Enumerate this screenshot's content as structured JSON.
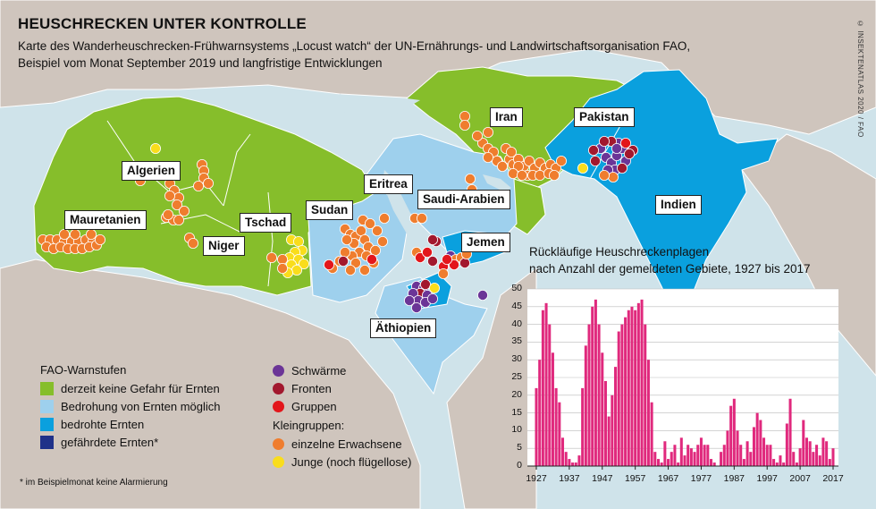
{
  "title": "HEUSCHRECKEN UNTER KONTROLLE",
  "subtitle_line1": "Karte des Wanderheuschrecken-Frühwarnsystems „Locust watch“ der UN-Ernährungs- und Landwirtschaftsorganisation FAO,",
  "subtitle_line2": "Beispiel vom Monat September 2019 und langfristige Entwicklungen",
  "credit": "© INSEKTENATLAS 2020 / FAO",
  "colors": {
    "sea": "#cfe3ea",
    "land_outside": "#cfc5bd",
    "no_danger": "#86be2b",
    "threat_possible": "#9ed0ed",
    "threatened": "#0aa0de",
    "endangered": "#1f3189",
    "swarms": "#6b3597",
    "fronts": "#a2182e",
    "groups": "#e3161b",
    "adults": "#ef7d2e",
    "young": "#f9dd1c",
    "bar": "#e0297d"
  },
  "countries": [
    {
      "key": "mauretanien",
      "label": "Mauretanien"
    },
    {
      "key": "algerien",
      "label": "Algerien"
    },
    {
      "key": "niger",
      "label": "Niger"
    },
    {
      "key": "tschad",
      "label": "Tschad"
    },
    {
      "key": "sudan",
      "label": "Sudan"
    },
    {
      "key": "eritrea",
      "label": "Eritrea"
    },
    {
      "key": "saudi",
      "label": "Saudi-Arabien"
    },
    {
      "key": "jemen",
      "label": "Jemen"
    },
    {
      "key": "aethiopien",
      "label": "Äthiopien"
    },
    {
      "key": "iran",
      "label": "Iran"
    },
    {
      "key": "pakistan",
      "label": "Pakistan"
    },
    {
      "key": "indien",
      "label": "Indien"
    }
  ],
  "legend": {
    "warn_title": "FAO-Warnstufen",
    "warn_items": [
      {
        "label": "derzeit keine Gefahr für Ernten",
        "color": "#86be2b"
      },
      {
        "label": "Bedrohung von Ernten möglich",
        "color": "#9ed0ed"
      },
      {
        "label": "bedrohte Ernten",
        "color": "#0aa0de"
      },
      {
        "label": "gefährdete Ernten*",
        "color": "#1f3189"
      }
    ],
    "groups_items": [
      {
        "label": "Schwärme",
        "color": "#6b3597"
      },
      {
        "label": "Fronten",
        "color": "#a2182e"
      },
      {
        "label": "Gruppen",
        "color": "#e3161b"
      }
    ],
    "small_title": "Kleingruppen:",
    "small_items": [
      {
        "label": "einzelne Erwachsene",
        "color": "#ef7d2e"
      },
      {
        "label": "Junge (noch flügellose)",
        "color": "#f9dd1c"
      }
    ]
  },
  "footnote": "* im Beispielmonat keine Alarmierung",
  "chart_data": {
    "type": "bar",
    "title": "Rückläufige Heuschreckenplagen nach Anzahl der gemeldeten Gebiete, 1927 bis 2017",
    "title_line1": "Rückläufige Heuschreckenplagen",
    "title_line2": "nach Anzahl der gemeldeten Gebiete, 1927 bis 2017",
    "x_start": 1927,
    "x_end": 2017,
    "xticks": [
      "1927",
      "1937",
      "1947",
      "1957",
      "1967",
      "1977",
      "1987",
      "1997",
      "2007",
      "2017"
    ],
    "yticks": [
      "0",
      "5",
      "10",
      "15",
      "20",
      "25",
      "30",
      "35",
      "40",
      "45",
      "50"
    ],
    "ylim": [
      0,
      50
    ],
    "grid": true,
    "values": [
      22,
      30,
      44,
      46,
      40,
      32,
      22,
      18,
      8,
      4,
      2,
      1,
      1,
      3,
      22,
      34,
      40,
      45,
      47,
      40,
      32,
      24,
      14,
      20,
      28,
      38,
      40,
      42,
      44,
      45,
      44,
      46,
      47,
      40,
      30,
      18,
      4,
      2,
      1,
      7,
      2,
      4,
      6,
      1,
      8,
      3,
      6,
      5,
      4,
      6,
      8,
      6,
      6,
      2,
      1,
      0,
      4,
      6,
      10,
      17,
      19,
      10,
      6,
      2,
      7,
      4,
      11,
      15,
      13,
      8,
      6,
      6,
      2,
      1,
      3,
      1,
      12,
      19,
      4,
      1,
      5,
      13,
      8,
      7,
      4,
      6,
      3,
      8,
      7,
      2,
      5
    ]
  }
}
